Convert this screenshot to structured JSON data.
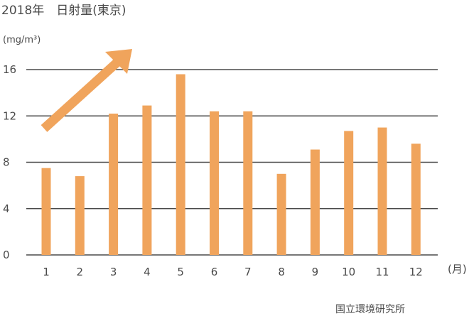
{
  "chart_data": {
    "type": "bar",
    "title": "2018年　日射量(東京)",
    "ylabel": "(mg/m³)",
    "xlabel": "(月)",
    "categories": [
      "1",
      "2",
      "3",
      "4",
      "5",
      "6",
      "7",
      "8",
      "9",
      "10",
      "11",
      "12"
    ],
    "values": [
      7.5,
      6.8,
      12.2,
      12.9,
      15.6,
      12.4,
      12.4,
      7.0,
      9.1,
      10.7,
      11.0,
      9.6
    ],
    "ylim": [
      0,
      16
    ],
    "yticks": [
      0,
      4,
      8,
      12,
      16
    ],
    "grid": true,
    "bar_color": "#f0a45c",
    "annotation": "trend-up-arrow",
    "arrow_color": "#f0a45c"
  },
  "source": "国立環境研究所"
}
